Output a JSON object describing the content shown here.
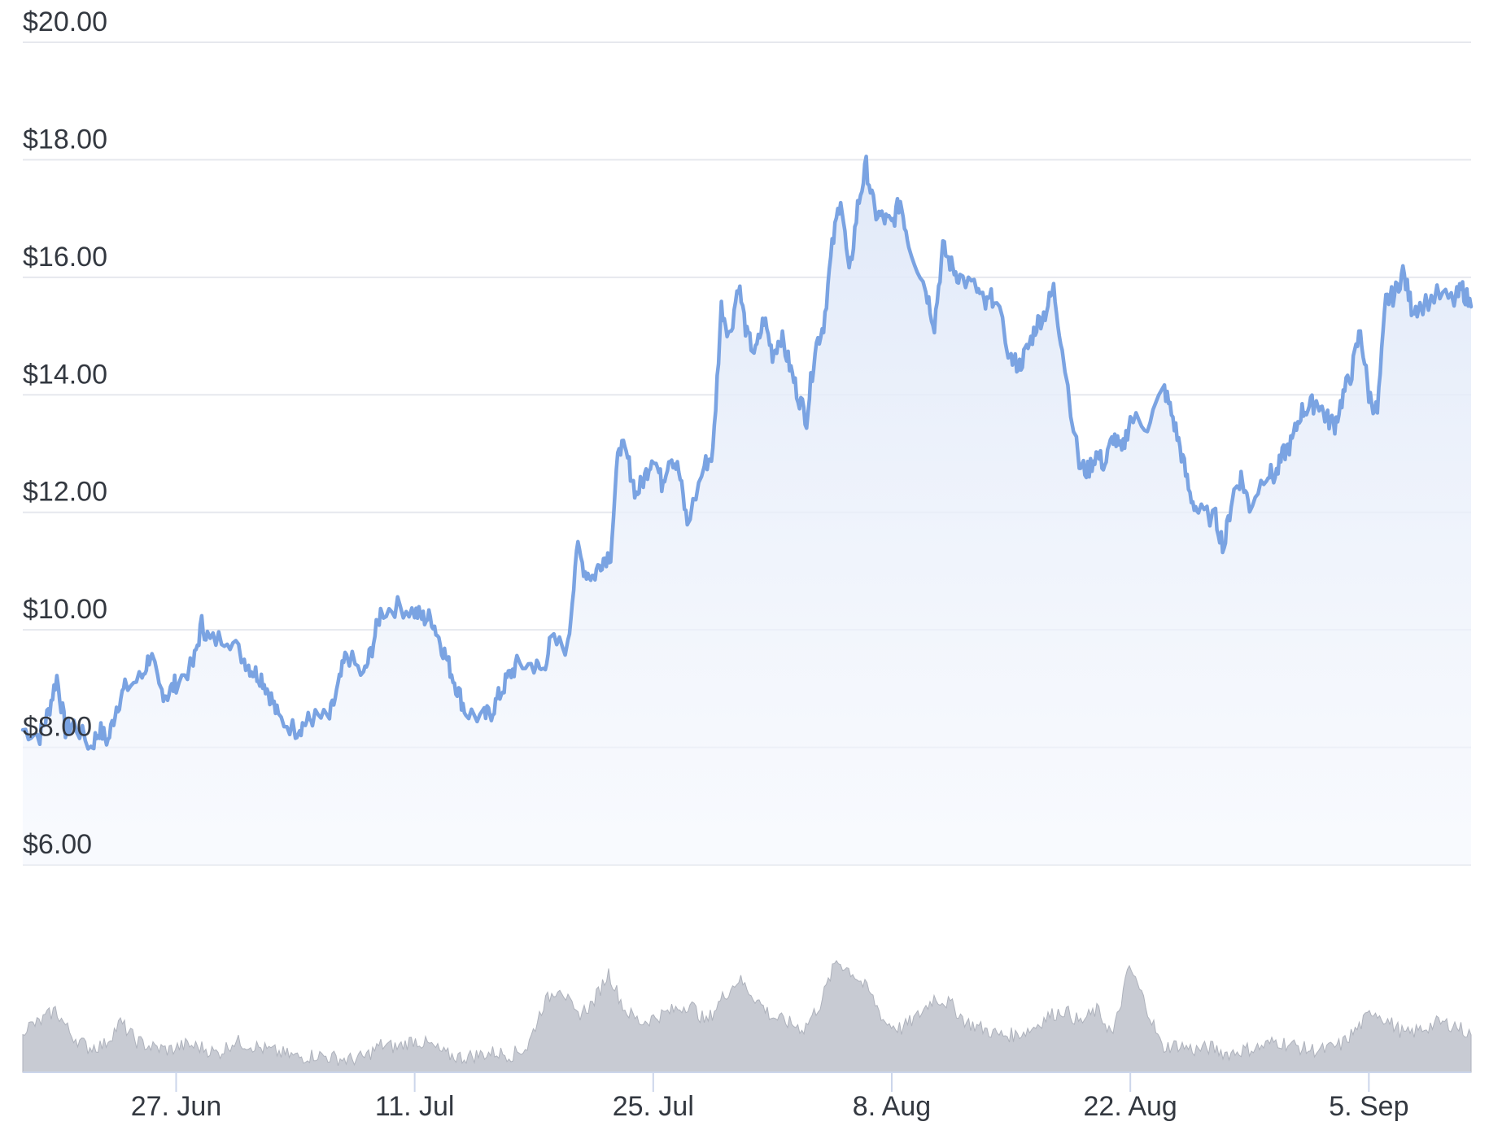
{
  "chart_data": {
    "type": "area",
    "title": "",
    "xlabel": "",
    "ylabel": "",
    "x_range": [
      "2022-06-18",
      "2022-09-11"
    ],
    "ylim": [
      6,
      20
    ],
    "y_ticks": [
      6,
      8,
      10,
      12,
      14,
      16,
      18,
      20
    ],
    "y_tick_labels": [
      "$6.00",
      "$8.00",
      "$10.00",
      "$12.00",
      "$14.00",
      "$16.00",
      "$18.00",
      "$20.00"
    ],
    "x_ticks": [
      {
        "date": "2022-06-27",
        "label": "27. Jun"
      },
      {
        "date": "2022-07-11",
        "label": "11. Jul"
      },
      {
        "date": "2022-07-25",
        "label": "25. Jul"
      },
      {
        "date": "2022-08-08",
        "label": "8. Aug"
      },
      {
        "date": "2022-08-22",
        "label": "22. Aug"
      },
      {
        "date": "2022-09-05",
        "label": "5. Sep"
      }
    ],
    "grid": true,
    "legend": "none",
    "series": [
      {
        "kind": "price",
        "color": "#7aa3e2",
        "points": [
          [
            "2022-06-18",
            8.3
          ],
          [
            "2022-06-19",
            8.2
          ],
          [
            "2022-06-19",
            8.6
          ],
          [
            "2022-06-20",
            9.2
          ],
          [
            "2022-06-20",
            8.3
          ],
          [
            "2022-06-21",
            8.4
          ],
          [
            "2022-06-22",
            8.0
          ],
          [
            "2022-06-22",
            8.3
          ],
          [
            "2022-06-23",
            8.1
          ],
          [
            "2022-06-23",
            8.7
          ],
          [
            "2022-06-24",
            9.0
          ],
          [
            "2022-06-25",
            9.2
          ],
          [
            "2022-06-25",
            9.6
          ],
          [
            "2022-06-26",
            9.0
          ],
          [
            "2022-06-26",
            8.9
          ],
          [
            "2022-06-27",
            9.1
          ],
          [
            "2022-06-28",
            9.4
          ],
          [
            "2022-06-28",
            10.1
          ],
          [
            "2022-06-29",
            9.8
          ],
          [
            "2022-06-30",
            9.9
          ],
          [
            "2022-07-01",
            9.5
          ],
          [
            "2022-07-01",
            9.3
          ],
          [
            "2022-07-02",
            9.2
          ],
          [
            "2022-07-02",
            8.9
          ],
          [
            "2022-07-03",
            8.5
          ],
          [
            "2022-07-04",
            8.3
          ],
          [
            "2022-07-04",
            8.4
          ],
          [
            "2022-07-05",
            8.5
          ],
          [
            "2022-07-06",
            8.5
          ],
          [
            "2022-07-06",
            9.0
          ],
          [
            "2022-07-07",
            9.6
          ],
          [
            "2022-07-08",
            9.2
          ],
          [
            "2022-07-08",
            9.7
          ],
          [
            "2022-07-09",
            10.3
          ],
          [
            "2022-07-10",
            10.4
          ],
          [
            "2022-07-11",
            10.3
          ],
          [
            "2022-07-11",
            10.2
          ],
          [
            "2022-07-12",
            10.2
          ],
          [
            "2022-07-12",
            9.8
          ],
          [
            "2022-07-13",
            9.4
          ],
          [
            "2022-07-13",
            9.0
          ],
          [
            "2022-07-14",
            8.6
          ],
          [
            "2022-07-15",
            8.5
          ],
          [
            "2022-07-15",
            8.6
          ],
          [
            "2022-07-16",
            8.9
          ],
          [
            "2022-07-16",
            9.2
          ],
          [
            "2022-07-17",
            9.4
          ],
          [
            "2022-07-18",
            9.4
          ],
          [
            "2022-07-18",
            9.3
          ],
          [
            "2022-07-19",
            9.8
          ],
          [
            "2022-07-20",
            9.7
          ],
          [
            "2022-07-20",
            11.4
          ],
          [
            "2022-07-21",
            11.0
          ],
          [
            "2022-07-21",
            10.9
          ],
          [
            "2022-07-22",
            11.2
          ],
          [
            "2022-07-22",
            11.3
          ],
          [
            "2022-07-23",
            13.2
          ],
          [
            "2022-07-23",
            12.9
          ],
          [
            "2022-07-24",
            12.3
          ],
          [
            "2022-07-24",
            12.6
          ],
          [
            "2022-07-25",
            13.0
          ],
          [
            "2022-07-25",
            12.5
          ],
          [
            "2022-07-26",
            13.0
          ],
          [
            "2022-07-26",
            12.7
          ],
          [
            "2022-07-27",
            11.8
          ],
          [
            "2022-07-28",
            12.8
          ],
          [
            "2022-07-28",
            13.0
          ],
          [
            "2022-07-29",
            15.5
          ],
          [
            "2022-07-29",
            15.0
          ],
          [
            "2022-07-30",
            15.9
          ],
          [
            "2022-07-30",
            15.0
          ],
          [
            "2022-07-31",
            14.7
          ],
          [
            "2022-07-31",
            15.3
          ],
          [
            "2022-08-01",
            14.7
          ],
          [
            "2022-08-01",
            15.0
          ],
          [
            "2022-08-02",
            14.5
          ],
          [
            "2022-08-02",
            14.0
          ],
          [
            "2022-08-03",
            13.6
          ],
          [
            "2022-08-03",
            14.8
          ],
          [
            "2022-08-04",
            15.2
          ],
          [
            "2022-08-04",
            16.5
          ],
          [
            "2022-08-05",
            17.4
          ],
          [
            "2022-08-05",
            16.0
          ],
          [
            "2022-08-06",
            17.2
          ],
          [
            "2022-08-06",
            17.9
          ],
          [
            "2022-08-07",
            17.1
          ],
          [
            "2022-08-07",
            17.0
          ],
          [
            "2022-08-08",
            16.9
          ],
          [
            "2022-08-08",
            17.3
          ],
          [
            "2022-08-09",
            16.6
          ],
          [
            "2022-08-10",
            15.8
          ],
          [
            "2022-08-10",
            15.2
          ],
          [
            "2022-08-11",
            16.5
          ],
          [
            "2022-08-11",
            16.2
          ],
          [
            "2022-08-12",
            16.0
          ],
          [
            "2022-08-13",
            15.8
          ],
          [
            "2022-08-13",
            15.5
          ],
          [
            "2022-08-14",
            15.7
          ],
          [
            "2022-08-15",
            14.6
          ],
          [
            "2022-08-15",
            14.5
          ],
          [
            "2022-08-16",
            14.8
          ],
          [
            "2022-08-16",
            15.2
          ],
          [
            "2022-08-17",
            15.4
          ],
          [
            "2022-08-17",
            15.8
          ],
          [
            "2022-08-18",
            14.8
          ],
          [
            "2022-08-19",
            12.8
          ],
          [
            "2022-08-19",
            12.7
          ],
          [
            "2022-08-20",
            13.0
          ],
          [
            "2022-08-20",
            12.8
          ],
          [
            "2022-08-21",
            13.3
          ],
          [
            "2022-08-21",
            13.0
          ],
          [
            "2022-08-22",
            13.6
          ],
          [
            "2022-08-23",
            13.5
          ],
          [
            "2022-08-24",
            14.1
          ],
          [
            "2022-08-24",
            13.6
          ],
          [
            "2022-08-25",
            13.0
          ],
          [
            "2022-08-25",
            12.3
          ],
          [
            "2022-08-26",
            12.0
          ],
          [
            "2022-08-27",
            11.9
          ],
          [
            "2022-08-27",
            11.4
          ],
          [
            "2022-08-28",
            12.3
          ],
          [
            "2022-08-28",
            12.6
          ],
          [
            "2022-08-29",
            12.1
          ],
          [
            "2022-08-30",
            12.7
          ],
          [
            "2022-08-30",
            12.6
          ],
          [
            "2022-08-31",
            13.0
          ],
          [
            "2022-08-31",
            13.2
          ],
          [
            "2022-09-01",
            13.7
          ],
          [
            "2022-09-01",
            13.8
          ],
          [
            "2022-09-02",
            13.9
          ],
          [
            "2022-09-02",
            13.6
          ],
          [
            "2022-09-03",
            13.5
          ],
          [
            "2022-09-03",
            14.0
          ],
          [
            "2022-09-04",
            14.4
          ],
          [
            "2022-09-04",
            15.1
          ],
          [
            "2022-09-05",
            14.0
          ],
          [
            "2022-09-05",
            13.7
          ],
          [
            "2022-09-06",
            15.6
          ],
          [
            "2022-09-06",
            15.7
          ],
          [
            "2022-09-07",
            16.1
          ],
          [
            "2022-09-07",
            15.5
          ],
          [
            "2022-09-08",
            15.5
          ],
          [
            "2022-09-09",
            15.7
          ],
          [
            "2022-09-10",
            15.6
          ],
          [
            "2022-09-10",
            15.8
          ],
          [
            "2022-09-11",
            15.5
          ]
        ]
      },
      {
        "kind": "volume",
        "color": "#c8cbd3",
        "relative_values": [
          0.35,
          0.4,
          0.5,
          0.3,
          0.2,
          0.22,
          0.4,
          0.25,
          0.2,
          0.18,
          0.22,
          0.2,
          0.15,
          0.25,
          0.22,
          0.18,
          0.15,
          0.12,
          0.14,
          0.12,
          0.1,
          0.12,
          0.22,
          0.2,
          0.26,
          0.22,
          0.14,
          0.12,
          0.14,
          0.16,
          0.14,
          0.2,
          0.55,
          0.7,
          0.45,
          0.55,
          0.8,
          0.5,
          0.4,
          0.45,
          0.5,
          0.55,
          0.4,
          0.6,
          0.75,
          0.6,
          0.45,
          0.4,
          0.35,
          0.55,
          0.9,
          0.8,
          0.65,
          0.4,
          0.35,
          0.45,
          0.6,
          0.55,
          0.4,
          0.35,
          0.3,
          0.3,
          0.35,
          0.45,
          0.5,
          0.4,
          0.5,
          0.3,
          0.85,
          0.55,
          0.2,
          0.22,
          0.18,
          0.2,
          0.15,
          0.18,
          0.2,
          0.25,
          0.22,
          0.18,
          0.18,
          0.22,
          0.35,
          0.5,
          0.4,
          0.3,
          0.35,
          0.4,
          0.38,
          0.3
        ]
      }
    ]
  }
}
